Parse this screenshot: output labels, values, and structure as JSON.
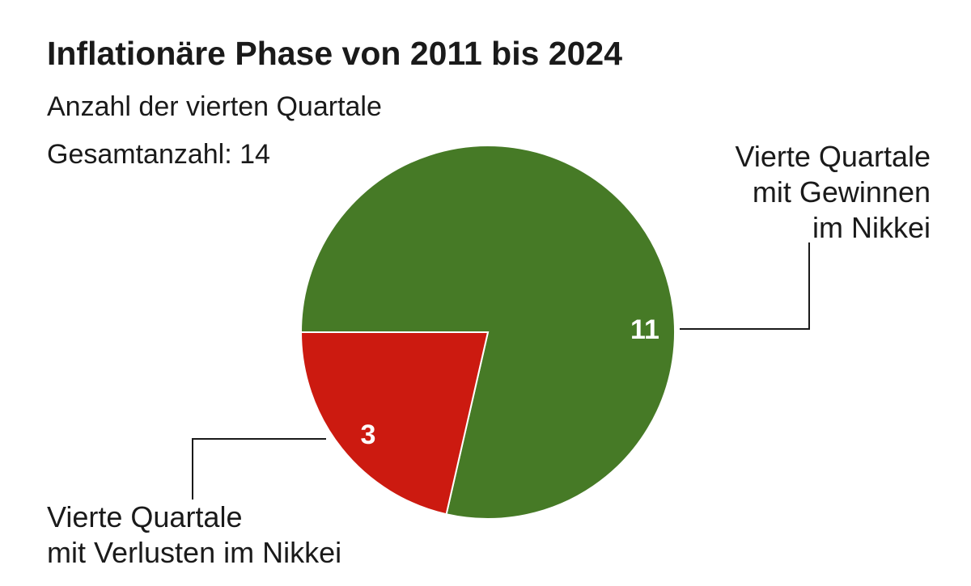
{
  "chart_data": {
    "type": "pie",
    "title": "Inflationäre Phase von 2011 bis 2024",
    "subtitle": "Anzahl der vierten Quartale",
    "annotation": "Gesamtanzahl: 14",
    "categories": [
      "Vierte Quartale\nmit Gewinnen\nim Nikkei",
      "Vierte Quartale\nmit Verlusten im Nikkei"
    ],
    "values": [
      11,
      3
    ],
    "colors": [
      "#467a26",
      "#cc1a10"
    ]
  }
}
